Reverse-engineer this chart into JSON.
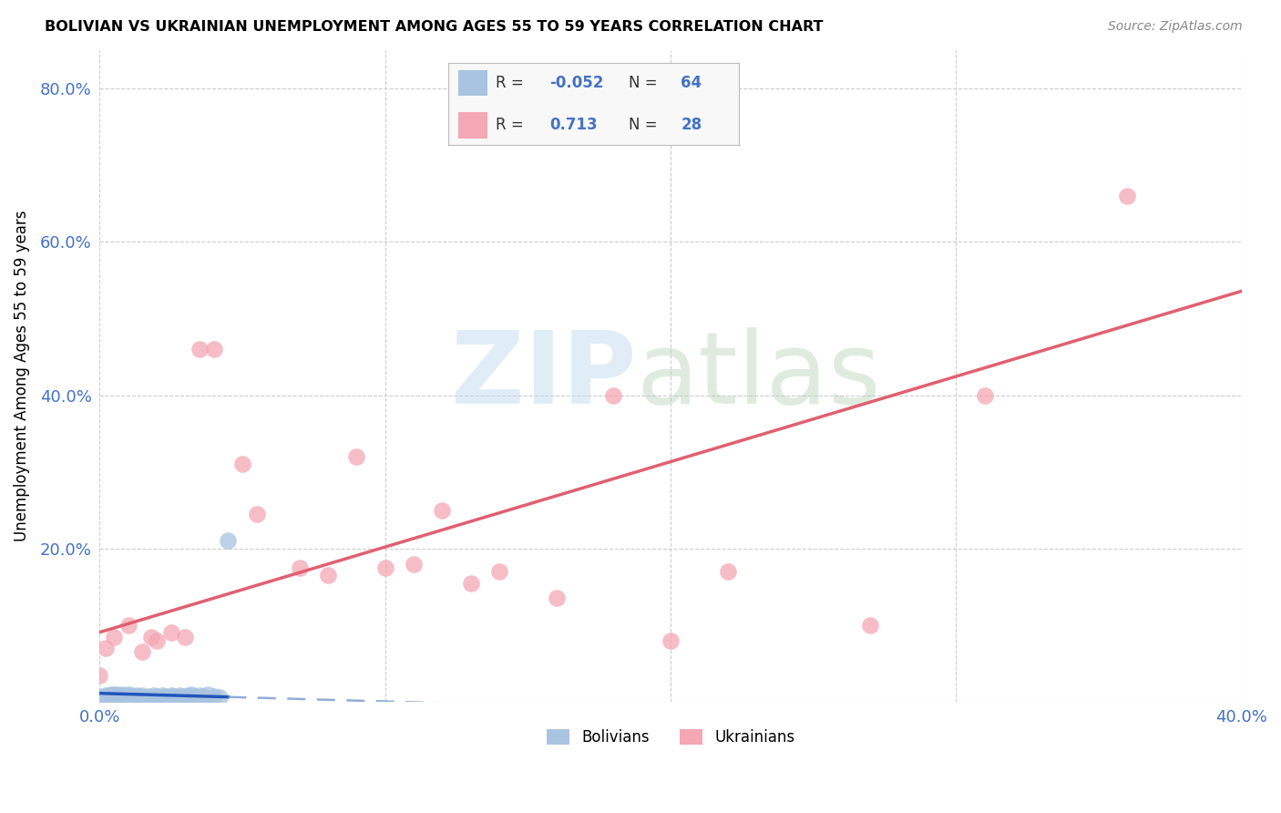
{
  "title": "BOLIVIAN VS UKRAINIAN UNEMPLOYMENT AMONG AGES 55 TO 59 YEARS CORRELATION CHART",
  "source": "Source: ZipAtlas.com",
  "ylabel": "Unemployment Among Ages 55 to 59 years",
  "xlim": [
    0.0,
    0.4
  ],
  "ylim": [
    0.0,
    0.85
  ],
  "xticks": [
    0.0,
    0.1,
    0.2,
    0.3,
    0.4
  ],
  "yticks": [
    0.0,
    0.2,
    0.4,
    0.6,
    0.8
  ],
  "ytick_labels": [
    "",
    "20.0%",
    "40.0%",
    "60.0%",
    "80.0%"
  ],
  "xtick_labels": [
    "0.0%",
    "",
    "",
    "",
    "40.0%"
  ],
  "bolivia_R": -0.052,
  "bolivia_N": 64,
  "ukraine_R": 0.713,
  "ukraine_N": 28,
  "bolivia_color": "#a8c4e0",
  "ukraine_color": "#f4a7b5",
  "bolivia_line_solid_color": "#2255bb",
  "bolivia_line_dash_color": "#7799cc",
  "ukraine_line_color": "#e06070",
  "bolivia_x": [
    0.0,
    0.0,
    0.0,
    0.001,
    0.001,
    0.002,
    0.002,
    0.002,
    0.003,
    0.003,
    0.003,
    0.004,
    0.004,
    0.004,
    0.005,
    0.005,
    0.005,
    0.006,
    0.006,
    0.006,
    0.007,
    0.007,
    0.008,
    0.008,
    0.009,
    0.009,
    0.01,
    0.01,
    0.01,
    0.011,
    0.011,
    0.012,
    0.013,
    0.013,
    0.014,
    0.015,
    0.015,
    0.016,
    0.017,
    0.018,
    0.019,
    0.02,
    0.02,
    0.021,
    0.022,
    0.023,
    0.024,
    0.025,
    0.026,
    0.027,
    0.028,
    0.029,
    0.03,
    0.031,
    0.032,
    0.033,
    0.034,
    0.035,
    0.036,
    0.037,
    0.038,
    0.04,
    0.042,
    0.045
  ],
  "bolivia_y": [
    0.0,
    0.003,
    0.007,
    0.001,
    0.005,
    0.002,
    0.004,
    0.008,
    0.002,
    0.005,
    0.008,
    0.003,
    0.006,
    0.009,
    0.003,
    0.006,
    0.009,
    0.004,
    0.007,
    0.01,
    0.004,
    0.008,
    0.005,
    0.009,
    0.005,
    0.008,
    0.004,
    0.007,
    0.01,
    0.005,
    0.008,
    0.006,
    0.005,
    0.008,
    0.006,
    0.005,
    0.008,
    0.006,
    0.007,
    0.006,
    0.008,
    0.005,
    0.007,
    0.006,
    0.008,
    0.007,
    0.006,
    0.008,
    0.007,
    0.005,
    0.008,
    0.007,
    0.006,
    0.008,
    0.009,
    0.007,
    0.006,
    0.008,
    0.007,
    0.006,
    0.009,
    0.007,
    0.006,
    0.21
  ],
  "ukraine_x": [
    0.0,
    0.002,
    0.005,
    0.01,
    0.015,
    0.018,
    0.02,
    0.025,
    0.03,
    0.035,
    0.04,
    0.05,
    0.055,
    0.07,
    0.08,
    0.09,
    0.1,
    0.11,
    0.12,
    0.13,
    0.14,
    0.16,
    0.18,
    0.2,
    0.22,
    0.27,
    0.31,
    0.36
  ],
  "ukraine_y": [
    0.035,
    0.07,
    0.085,
    0.1,
    0.065,
    0.085,
    0.08,
    0.09,
    0.085,
    0.46,
    0.46,
    0.31,
    0.245,
    0.175,
    0.165,
    0.32,
    0.175,
    0.18,
    0.25,
    0.155,
    0.17,
    0.135,
    0.4,
    0.08,
    0.17,
    0.1,
    0.4,
    0.66
  ]
}
